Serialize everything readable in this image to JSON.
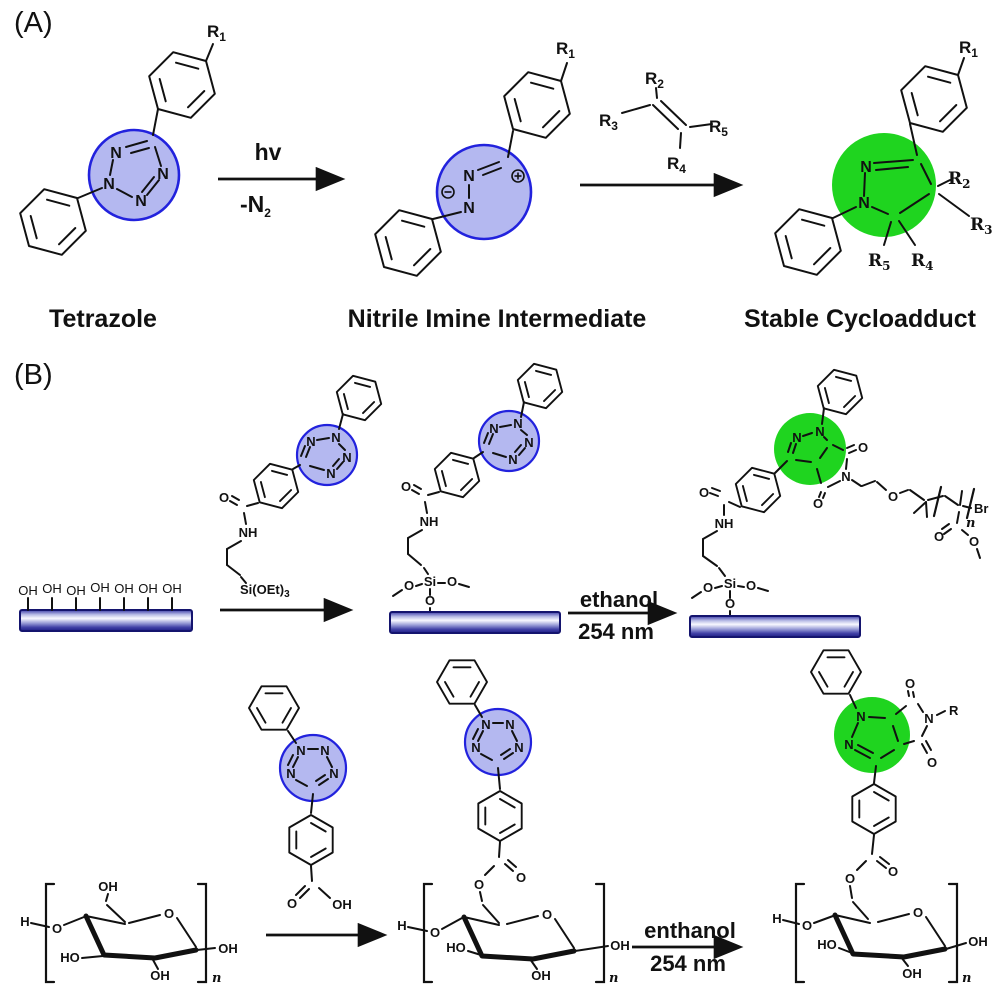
{
  "text": {
    "panel_a_label": "(A)",
    "panel_b_label": "(B)",
    "caption_tetrazole": "Tetrazole",
    "caption_nitrile_imine": "Nitrile Imine Intermediate",
    "caption_cycloadduct": "Stable Cycloadduct",
    "hv": "hv",
    "minus_n": "-N",
    "sub_1": "1",
    "sub_2": "2",
    "sub_3": "3",
    "sub_4": "4",
    "sub_5": "5",
    "r": "R",
    "atom_n": "N",
    "atom_o": "O",
    "atom_oh": "OH",
    "atom_ho": "HO",
    "atom_nh": "NH",
    "atom_h": "H",
    "atom_si": "Si",
    "si_oet": "Si(OEt)",
    "atom_br": "Br",
    "r_group": "R",
    "repeat_n": "n",
    "ethanol": "ethanol",
    "enthanol": "enthanol",
    "nm_254": "254 nm"
  },
  "colors": {
    "tetrazole_fill": "#b4b8f0",
    "tetrazole_stroke": "#2222dd",
    "highlight_green": "#1fd41f",
    "surface_edge": "#14146e"
  }
}
